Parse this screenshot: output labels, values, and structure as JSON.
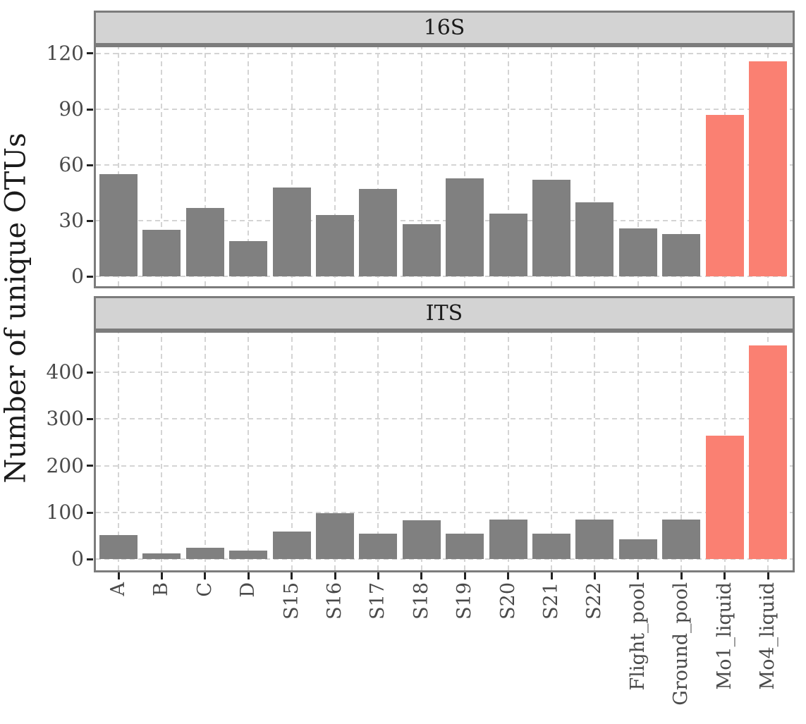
{
  "figure": {
    "y_axis_title": "Number of unique OTUs"
  },
  "chart_data": {
    "type": "bar",
    "title": "",
    "xlabel": "",
    "ylabel": "Number of unique OTUs",
    "legend": "none",
    "grid": "dashed light-gray major gridlines, horizontal and vertical",
    "facet_layout": "two stacked panels sharing x axis",
    "categories": [
      "A",
      "B",
      "C",
      "D",
      "S15",
      "S16",
      "S17",
      "S18",
      "S19",
      "S20",
      "S21",
      "S22",
      "Flight_pool",
      "Ground_pool",
      "Mo1_liquid",
      "Mo4_liquid"
    ],
    "highlight_categories": [
      "Mo1_liquid",
      "Mo4_liquid"
    ],
    "colors": {
      "bar_default": "#808080",
      "bar_highlight": "#fa8072",
      "strip_background": "#d3d3d3",
      "panel_border": "#7c7c7c",
      "gridline": "#d4d4d4",
      "tick_mark": "#222222",
      "tick_label": "#4a4a4a",
      "title_text": "#1a1a1a"
    },
    "facets": [
      {
        "label": "16S",
        "y_ticks": [
          0,
          30,
          60,
          90,
          120
        ],
        "ylim": [
          0,
          123
        ],
        "values": [
          55,
          25,
          37,
          19,
          48,
          33,
          47,
          28,
          53,
          34,
          52,
          40,
          26,
          23,
          87,
          116
        ]
      },
      {
        "label": "ITS",
        "y_ticks": [
          0,
          100,
          200,
          300,
          400
        ],
        "ylim": [
          0,
          485
        ],
        "values": [
          51,
          12,
          25,
          18,
          59,
          98,
          55,
          84,
          55,
          85,
          55,
          85,
          43,
          85,
          264,
          458
        ]
      }
    ]
  }
}
